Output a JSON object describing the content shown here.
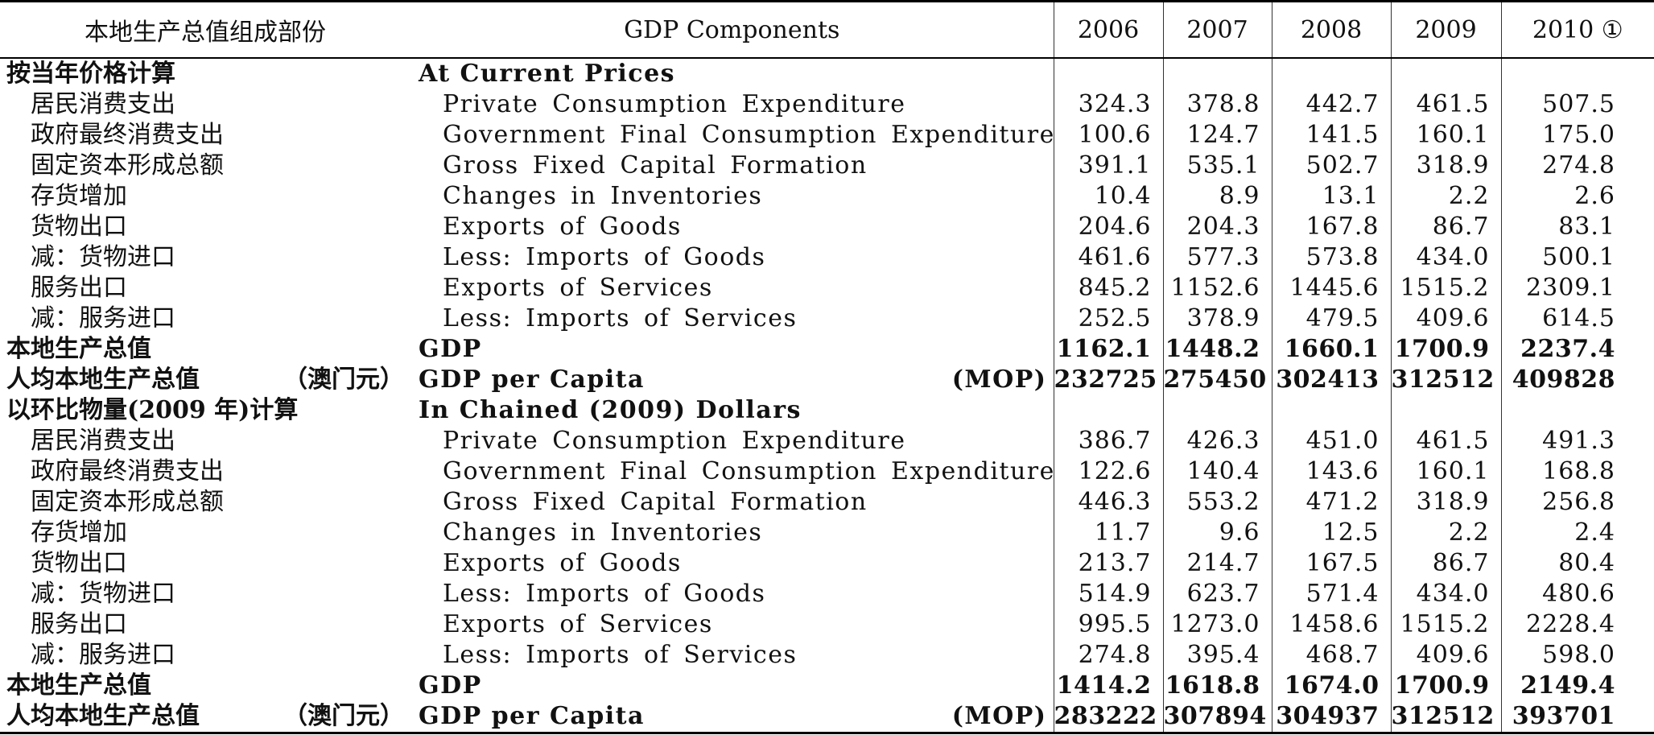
{
  "header": {
    "cn_label": "本地生产总值组成部份",
    "en_label": "GDP Components",
    "years": [
      "2006",
      "2007",
      "2008",
      "2009",
      "2010 ①"
    ]
  },
  "sections": [
    {
      "title_cn": "按当年价格计算",
      "title_en": "At Current Prices",
      "rows": [
        {
          "cn": "居民消费支出",
          "en": "Private Consumption Expenditure",
          "values": [
            "324.3",
            "378.8",
            "442.7",
            "461.5",
            "507.5"
          ]
        },
        {
          "cn": "政府最终消费支出",
          "en": "Government Final Consumption Expenditure",
          "values": [
            "100.6",
            "124.7",
            "141.5",
            "160.1",
            "175.0"
          ]
        },
        {
          "cn": "固定资本形成总额",
          "en": "Gross Fixed Capital Formation",
          "values": [
            "391.1",
            "535.1",
            "502.7",
            "318.9",
            "274.8"
          ]
        },
        {
          "cn": "存货增加",
          "en": "Changes in Inventories",
          "values": [
            "10.4",
            "8.9",
            "13.1",
            "2.2",
            "2.6"
          ]
        },
        {
          "cn": "货物出口",
          "en": "Exports of Goods",
          "values": [
            "204.6",
            "204.3",
            "167.8",
            "86.7",
            "83.1"
          ]
        },
        {
          "cn": "减：货物进口",
          "en": "Less: Imports of Goods",
          "values": [
            "461.6",
            "577.3",
            "573.8",
            "434.0",
            "500.1"
          ]
        },
        {
          "cn": "服务出口",
          "en": "Exports of Services",
          "values": [
            "845.2",
            "1152.6",
            "1445.6",
            "1515.2",
            "2309.1"
          ]
        },
        {
          "cn": "减：服务进口",
          "en": "Less: Imports of Services",
          "values": [
            "252.5",
            "378.9",
            "479.5",
            "409.6",
            "614.5"
          ]
        }
      ],
      "gdp": {
        "cn": "本地生产总值",
        "en": "GDP",
        "values": [
          "1162.1",
          "1448.2",
          "1660.1",
          "1700.9",
          "2237.4"
        ]
      },
      "per_capita": {
        "cn": "人均本地生产总值",
        "cn_unit": "（澳门元）",
        "en": "GDP per Capita",
        "en_unit": "(MOP)",
        "values": [
          "232725",
          "275450",
          "302413",
          "312512",
          "409828"
        ]
      }
    },
    {
      "title_cn": "以环比物量(2009 年)计算",
      "title_en": "In Chained (2009) Dollars",
      "rows": [
        {
          "cn": "居民消费支出",
          "en": "Private Consumption Expenditure",
          "values": [
            "386.7",
            "426.3",
            "451.0",
            "461.5",
            "491.3"
          ]
        },
        {
          "cn": "政府最终消费支出",
          "en": "Government Final Consumption Expenditure",
          "values": [
            "122.6",
            "140.4",
            "143.6",
            "160.1",
            "168.8"
          ]
        },
        {
          "cn": "固定资本形成总额",
          "en": "Gross Fixed Capital Formation",
          "values": [
            "446.3",
            "553.2",
            "471.2",
            "318.9",
            "256.8"
          ]
        },
        {
          "cn": "存货增加",
          "en": "Changes in Inventories",
          "values": [
            "11.7",
            "9.6",
            "12.5",
            "2.2",
            "2.4"
          ]
        },
        {
          "cn": "货物出口",
          "en": "Exports of Goods",
          "values": [
            "213.7",
            "214.7",
            "167.5",
            "86.7",
            "80.4"
          ]
        },
        {
          "cn": "减：货物进口",
          "en": "Less: Imports of Goods",
          "values": [
            "514.9",
            "623.7",
            "571.4",
            "434.0",
            "480.6"
          ]
        },
        {
          "cn": "服务出口",
          "en": "Exports of Services",
          "values": [
            "995.5",
            "1273.0",
            "1458.6",
            "1515.2",
            "2228.4"
          ]
        },
        {
          "cn": "减：服务进口",
          "en": "Less: Imports of Services",
          "values": [
            "274.8",
            "395.4",
            "468.7",
            "409.6",
            "598.0"
          ]
        }
      ],
      "gdp": {
        "cn": "本地生产总值",
        "en": "GDP",
        "values": [
          "1414.2",
          "1618.8",
          "1674.0",
          "1700.9",
          "2149.4"
        ]
      },
      "per_capita": {
        "cn": "人均本地生产总值",
        "cn_unit": "（澳门元）",
        "en": "GDP per Capita",
        "en_unit": "(MOP)",
        "values": [
          "283222",
          "307894",
          "304937",
          "312512",
          "393701"
        ]
      }
    }
  ]
}
